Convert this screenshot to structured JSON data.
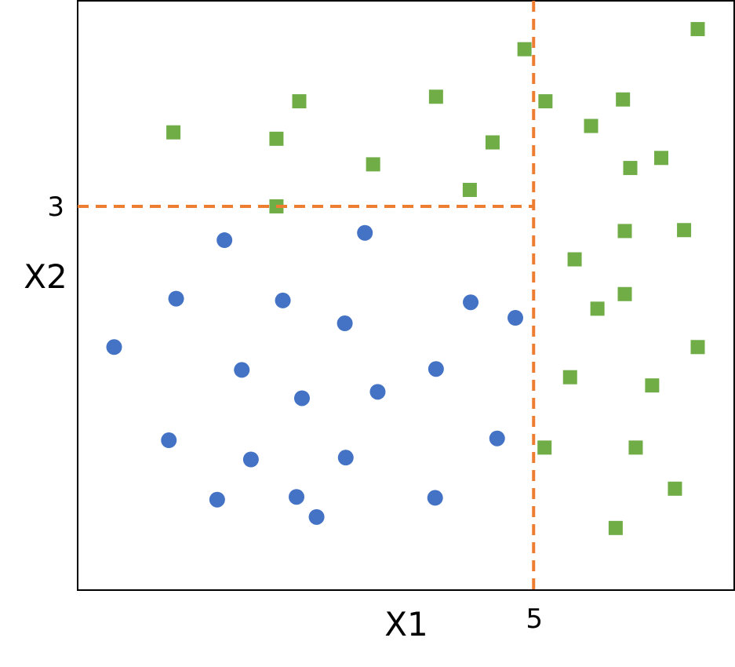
{
  "chart_data": {
    "type": "scatter",
    "title": "",
    "xlabel": "X1",
    "ylabel": "X2",
    "xlim": [
      0,
      7.2
    ],
    "ylim": [
      -1.2,
      5.25
    ],
    "grid": false,
    "axis_ticks": {
      "x": [
        {
          "value": 5,
          "label": "5"
        }
      ],
      "y": [
        {
          "value": 3,
          "label": "3"
        }
      ]
    },
    "threshold_lines": {
      "color": "#ED7D31",
      "style": "dashed",
      "vertical": {
        "x": 5,
        "y_from": -1.2,
        "y_to": 5.25
      },
      "horizontal": {
        "y": 3,
        "x_from": 0,
        "x_to": 5
      }
    },
    "series": [
      {
        "marker": "circle",
        "color": "#4472C4",
        "points": [
          [
            0.4,
            1.46
          ],
          [
            1.08,
            1.99
          ],
          [
            1.0,
            0.44
          ],
          [
            1.61,
            2.63
          ],
          [
            1.8,
            1.21
          ],
          [
            2.25,
            1.97
          ],
          [
            1.9,
            0.23
          ],
          [
            2.46,
            0.9
          ],
          [
            1.53,
            -0.21
          ],
          [
            2.4,
            -0.18
          ],
          [
            2.62,
            -0.4
          ],
          [
            2.93,
            1.72
          ],
          [
            2.94,
            0.25
          ],
          [
            3.15,
            2.71
          ],
          [
            3.29,
            0.97
          ],
          [
            3.93,
            1.22
          ],
          [
            3.92,
            -0.19
          ],
          [
            4.31,
            1.95
          ],
          [
            4.6,
            0.46
          ],
          [
            4.8,
            1.78
          ]
        ]
      },
      {
        "marker": "square",
        "color": "#70AD47",
        "points": [
          [
            1.05,
            3.81
          ],
          [
            2.18,
            3.74
          ],
          [
            2.43,
            4.15
          ],
          [
            2.18,
            3.0
          ],
          [
            3.24,
            3.46
          ],
          [
            3.93,
            4.2
          ],
          [
            4.3,
            3.18
          ],
          [
            4.55,
            3.7
          ],
          [
            4.9,
            4.72
          ],
          [
            5.13,
            4.15
          ],
          [
            5.63,
            3.88
          ],
          [
            5.98,
            4.17
          ],
          [
            6.06,
            3.42
          ],
          [
            6.4,
            3.53
          ],
          [
            6.8,
            4.94
          ],
          [
            5.45,
            2.42
          ],
          [
            6.0,
            2.73
          ],
          [
            6.65,
            2.74
          ],
          [
            5.7,
            1.88
          ],
          [
            6.0,
            2.04
          ],
          [
            6.8,
            1.46
          ],
          [
            5.4,
            1.13
          ],
          [
            6.3,
            1.04
          ],
          [
            5.12,
            0.36
          ],
          [
            6.12,
            0.36
          ],
          [
            6.55,
            -0.09
          ],
          [
            5.9,
            -0.52
          ]
        ]
      }
    ]
  }
}
